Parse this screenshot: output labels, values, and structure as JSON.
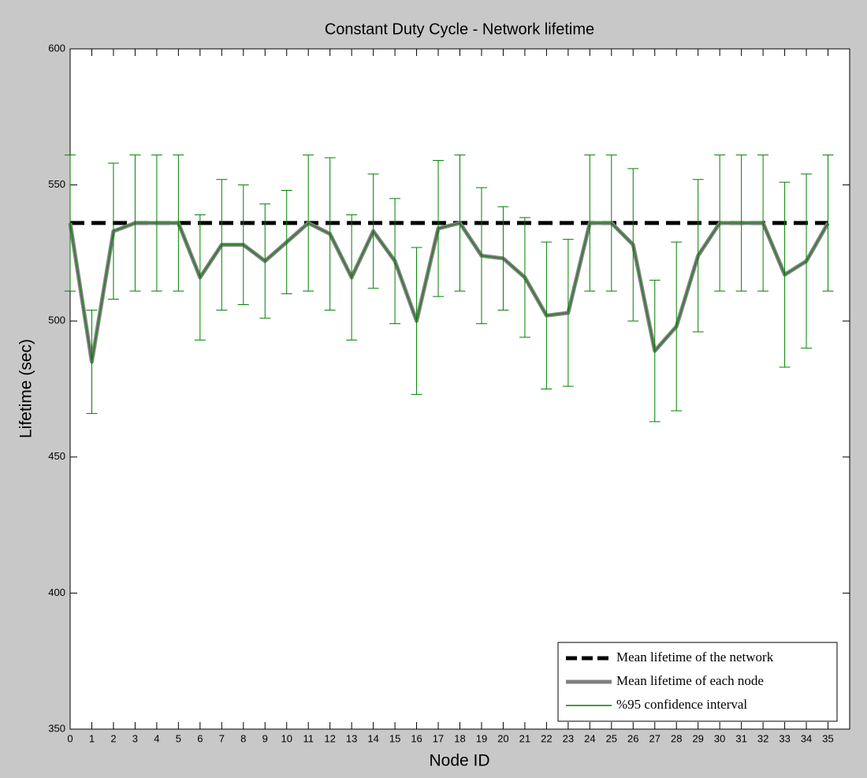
{
  "chart_data": {
    "type": "errorbar",
    "title": "Constant Duty Cycle - Network lifetime",
    "x_label": "Node ID",
    "y_label": "Lifetime (sec)",
    "x": [
      0,
      1,
      2,
      3,
      4,
      5,
      6,
      7,
      8,
      9,
      10,
      11,
      12,
      13,
      14,
      15,
      16,
      17,
      18,
      19,
      20,
      21,
      22,
      23,
      24,
      25,
      26,
      27,
      28,
      29,
      30,
      31,
      32,
      33,
      34,
      35
    ],
    "network_mean": {
      "name": "Mean lifetime of the network",
      "color": "#000000",
      "value": 536
    },
    "node_mean": {
      "name": "Mean lifetime of each node",
      "color": "#808080",
      "values": [
        536,
        485,
        533,
        536,
        536,
        536,
        516,
        528,
        528,
        522,
        529,
        536,
        532,
        516,
        533,
        522,
        500,
        534,
        536,
        524,
        523,
        516,
        502,
        503,
        536,
        536,
        528,
        489,
        498,
        524,
        536,
        536,
        536,
        517,
        522,
        536
      ]
    },
    "confidence": {
      "name": "%95 confidence interval",
      "color": "#008000",
      "errors": [
        25,
        19,
        25,
        25,
        25,
        25,
        23,
        24,
        22,
        21,
        19,
        25,
        28,
        23,
        21,
        23,
        27,
        25,
        25,
        25,
        19,
        22,
        27,
        27,
        25,
        25,
        28,
        26,
        31,
        28,
        25,
        25,
        25,
        34,
        32,
        25
      ]
    },
    "xlim": [
      0,
      36
    ],
    "ylim": [
      350,
      600
    ],
    "xticks": [
      0,
      1,
      2,
      3,
      4,
      5,
      6,
      7,
      8,
      9,
      10,
      11,
      12,
      13,
      14,
      15,
      16,
      17,
      18,
      19,
      20,
      21,
      22,
      23,
      24,
      25,
      26,
      27,
      28,
      29,
      30,
      31,
      32,
      33,
      34,
      35
    ],
    "yticks": [
      350,
      400,
      450,
      500,
      550,
      600
    ],
    "legend": "lower right"
  }
}
